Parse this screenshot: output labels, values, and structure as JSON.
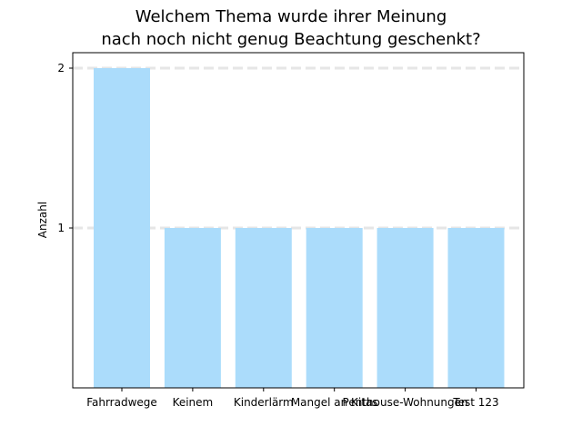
{
  "chart_data": {
    "type": "bar",
    "title": [
      "Welchem Thema wurde ihrer Meinung",
      "nach noch nicht genug Beachtung geschenkt?"
    ],
    "xlabel": "",
    "ylabel": "Anzahl",
    "categories": [
      "Fahrradwege",
      "Keinem",
      "Kinderlärm",
      "Mangel an Kitas",
      "Penthouse-Wohnungen",
      "Test 123"
    ],
    "values": [
      2,
      1,
      1,
      1,
      1,
      1
    ],
    "ylim": [
      0,
      2
    ],
    "yticks": [
      1,
      2
    ],
    "grid": "horizontal dashed",
    "bar_color": "#abdcfb",
    "grid_color": "#e6e6e6"
  }
}
